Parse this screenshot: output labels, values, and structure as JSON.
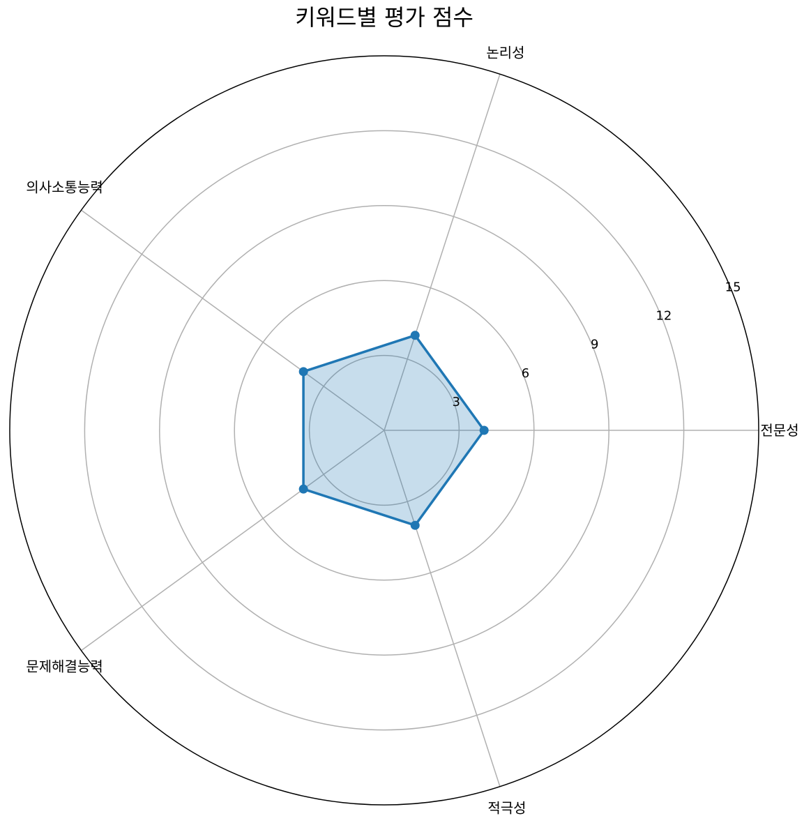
{
  "chart_data": {
    "type": "radar",
    "title": "키워드별 평가 점수",
    "categories": [
      "전문성",
      "논리성",
      "의사소통능력",
      "문제해결능력",
      "적극성"
    ],
    "series": [
      {
        "values": [
          4,
          4,
          4,
          4,
          4
        ]
      }
    ],
    "rlim": [
      0,
      15
    ],
    "rticks": [
      3,
      6,
      9,
      12,
      15
    ],
    "grid": true,
    "colors": {
      "line": "#1f77b4",
      "fill": "#1f77b4",
      "grid": "#b0b0b0",
      "frame": "#000000"
    }
  }
}
